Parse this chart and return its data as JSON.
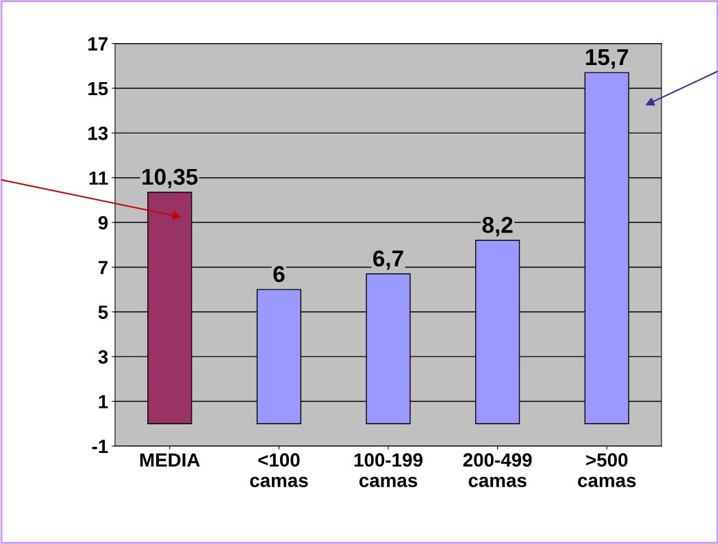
{
  "chart_data": {
    "type": "bar",
    "categories": [
      "MEDIA",
      "<100\ncamas",
      "100-199\ncamas",
      "200-499\ncamas",
      ">500\ncamas"
    ],
    "values": [
      10.35,
      6,
      6.7,
      8.2,
      15.7
    ],
    "colors": [
      "#993366",
      "#9999ff",
      "#9999ff",
      "#9999ff",
      "#9999ff"
    ],
    "value_labels": [
      "10,35",
      "6",
      "6,7",
      "8,2",
      "15,7"
    ],
    "ylim": [
      -1,
      17
    ],
    "yticks": [
      {
        "value": -1,
        "label": "-1"
      },
      1,
      3,
      5,
      7,
      9,
      11,
      13,
      15,
      17
    ],
    "grid": "y"
  }
}
